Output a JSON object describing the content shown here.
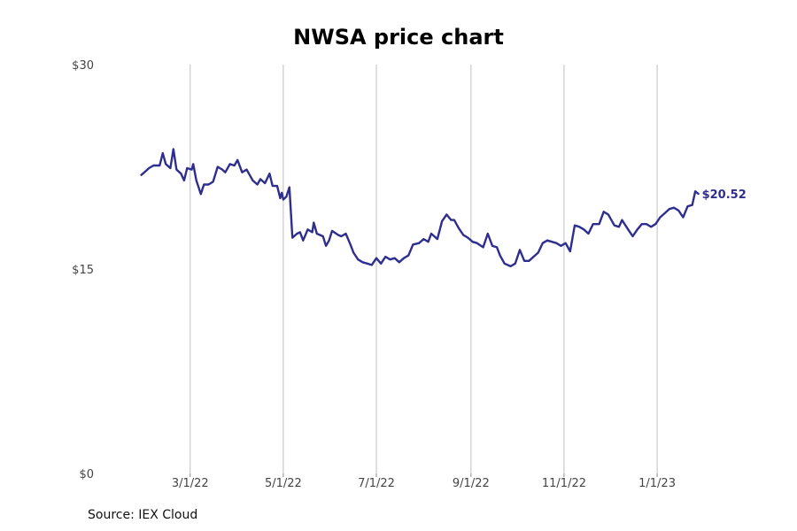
{
  "title": "NWSA price chart",
  "source": "Source: IEX Cloud",
  "colors": {
    "line": "#2e2e8f",
    "grid": "#c0c0c0"
  },
  "chart_data": {
    "type": "line",
    "title": "NWSA price chart",
    "xlabel": "",
    "ylabel": "",
    "ylim": [
      0,
      30
    ],
    "y_ticks": [
      {
        "value": 0,
        "label": "$0"
      },
      {
        "value": 15,
        "label": "$15"
      },
      {
        "value": 30,
        "label": "$30"
      }
    ],
    "x_range": [
      "2022-01-05",
      "2023-02-28"
    ],
    "x_ticks": [
      {
        "date": "2022-03-01",
        "label": "3/1/22"
      },
      {
        "date": "2022-05-01",
        "label": "5/1/22"
      },
      {
        "date": "2022-07-01",
        "label": "7/1/22"
      },
      {
        "date": "2022-09-01",
        "label": "9/1/22"
      },
      {
        "date": "2022-11-01",
        "label": "11/1/22"
      },
      {
        "date": "2023-01-01",
        "label": "1/1/23"
      }
    ],
    "grid": "vertical lines at x ticks",
    "end_label": "$20.52",
    "series": [
      {
        "values": [
          [
            "2022-01-28",
            21.9
          ],
          [
            "2022-01-31",
            22.2
          ],
          [
            "2022-02-02",
            22.4
          ],
          [
            "2022-02-05",
            22.6
          ],
          [
            "2022-02-09",
            22.6
          ],
          [
            "2022-02-11",
            23.5
          ],
          [
            "2022-02-13",
            22.7
          ],
          [
            "2022-02-16",
            22.4
          ],
          [
            "2022-02-18",
            23.8
          ],
          [
            "2022-02-20",
            22.3
          ],
          [
            "2022-02-23",
            22.0
          ],
          [
            "2022-02-25",
            21.5
          ],
          [
            "2022-02-27",
            22.4
          ],
          [
            "2022-03-02",
            22.3
          ],
          [
            "2022-03-03",
            22.7
          ],
          [
            "2022-03-05",
            21.5
          ],
          [
            "2022-03-08",
            20.5
          ],
          [
            "2022-03-10",
            21.2
          ],
          [
            "2022-03-13",
            21.2
          ],
          [
            "2022-03-16",
            21.4
          ],
          [
            "2022-03-19",
            22.5
          ],
          [
            "2022-03-22",
            22.3
          ],
          [
            "2022-03-24",
            22.1
          ],
          [
            "2022-03-27",
            22.7
          ],
          [
            "2022-03-30",
            22.6
          ],
          [
            "2022-04-01",
            23.0
          ],
          [
            "2022-04-04",
            22.1
          ],
          [
            "2022-04-07",
            22.3
          ],
          [
            "2022-04-11",
            21.5
          ],
          [
            "2022-04-14",
            21.2
          ],
          [
            "2022-04-16",
            21.6
          ],
          [
            "2022-04-19",
            21.3
          ],
          [
            "2022-04-22",
            22.0
          ],
          [
            "2022-04-24",
            21.1
          ],
          [
            "2022-04-27",
            21.1
          ],
          [
            "2022-04-29",
            20.2
          ],
          [
            "2022-04-30",
            20.6
          ],
          [
            "2022-05-01",
            20.1
          ],
          [
            "2022-05-03",
            20.3
          ],
          [
            "2022-05-05",
            21.0
          ],
          [
            "2022-05-07",
            17.3
          ],
          [
            "2022-05-10",
            17.6
          ],
          [
            "2022-05-12",
            17.7
          ],
          [
            "2022-05-14",
            17.1
          ],
          [
            "2022-05-17",
            17.9
          ],
          [
            "2022-05-20",
            17.7
          ],
          [
            "2022-05-21",
            18.4
          ],
          [
            "2022-05-23",
            17.6
          ],
          [
            "2022-05-27",
            17.4
          ],
          [
            "2022-05-29",
            16.7
          ],
          [
            "2022-05-31",
            17.1
          ],
          [
            "2022-06-02",
            17.8
          ],
          [
            "2022-06-06",
            17.5
          ],
          [
            "2022-06-08",
            17.4
          ],
          [
            "2022-06-11",
            17.6
          ],
          [
            "2022-06-14",
            16.8
          ],
          [
            "2022-06-16",
            16.2
          ],
          [
            "2022-06-19",
            15.7
          ],
          [
            "2022-06-22",
            15.5
          ],
          [
            "2022-06-25",
            15.4
          ],
          [
            "2022-06-28",
            15.3
          ],
          [
            "2022-07-01",
            15.8
          ],
          [
            "2022-07-04",
            15.4
          ],
          [
            "2022-07-07",
            15.9
          ],
          [
            "2022-07-10",
            15.7
          ],
          [
            "2022-07-13",
            15.8
          ],
          [
            "2022-07-16",
            15.5
          ],
          [
            "2022-07-19",
            15.8
          ],
          [
            "2022-07-22",
            16.0
          ],
          [
            "2022-07-25",
            16.8
          ],
          [
            "2022-07-29",
            16.9
          ],
          [
            "2022-08-01",
            17.2
          ],
          [
            "2022-08-04",
            17.0
          ],
          [
            "2022-08-06",
            17.6
          ],
          [
            "2022-08-10",
            17.2
          ],
          [
            "2022-08-13",
            18.5
          ],
          [
            "2022-08-16",
            19.0
          ],
          [
            "2022-08-19",
            18.6
          ],
          [
            "2022-08-21",
            18.6
          ],
          [
            "2022-08-24",
            18.0
          ],
          [
            "2022-08-27",
            17.5
          ],
          [
            "2022-08-30",
            17.3
          ],
          [
            "2022-09-02",
            17.0
          ],
          [
            "2022-09-05",
            16.9
          ],
          [
            "2022-09-09",
            16.6
          ],
          [
            "2022-09-12",
            17.6
          ],
          [
            "2022-09-15",
            16.7
          ],
          [
            "2022-09-18",
            16.6
          ],
          [
            "2022-09-20",
            16.0
          ],
          [
            "2022-09-23",
            15.4
          ],
          [
            "2022-09-27",
            15.2
          ],
          [
            "2022-09-30",
            15.4
          ],
          [
            "2022-10-03",
            16.4
          ],
          [
            "2022-10-06",
            15.6
          ],
          [
            "2022-10-09",
            15.6
          ],
          [
            "2022-10-12",
            15.9
          ],
          [
            "2022-10-15",
            16.2
          ],
          [
            "2022-10-18",
            16.9
          ],
          [
            "2022-10-21",
            17.1
          ],
          [
            "2022-10-24",
            17.0
          ],
          [
            "2022-10-27",
            16.9
          ],
          [
            "2022-10-30",
            16.7
          ],
          [
            "2022-11-02",
            16.9
          ],
          [
            "2022-11-05",
            16.3
          ],
          [
            "2022-11-08",
            18.2
          ],
          [
            "2022-11-11",
            18.1
          ],
          [
            "2022-11-14",
            17.9
          ],
          [
            "2022-11-17",
            17.6
          ],
          [
            "2022-11-20",
            18.3
          ],
          [
            "2022-11-24",
            18.3
          ],
          [
            "2022-11-27",
            19.2
          ],
          [
            "2022-11-30",
            19.0
          ],
          [
            "2022-12-04",
            18.2
          ],
          [
            "2022-12-07",
            18.1
          ],
          [
            "2022-12-09",
            18.6
          ],
          [
            "2022-12-13",
            17.9
          ],
          [
            "2022-12-16",
            17.4
          ],
          [
            "2022-12-19",
            17.9
          ],
          [
            "2022-12-22",
            18.3
          ],
          [
            "2022-12-25",
            18.3
          ],
          [
            "2022-12-28",
            18.1
          ],
          [
            "2022-12-31",
            18.3
          ],
          [
            "2023-01-03",
            18.8
          ],
          [
            "2023-01-06",
            19.1
          ],
          [
            "2023-01-09",
            19.4
          ],
          [
            "2023-01-12",
            19.5
          ],
          [
            "2023-01-15",
            19.3
          ],
          [
            "2023-01-18",
            18.8
          ],
          [
            "2023-01-21",
            19.6
          ],
          [
            "2023-01-24",
            19.7
          ],
          [
            "2023-01-26",
            20.7
          ],
          [
            "2023-01-28",
            20.52
          ]
        ]
      }
    ]
  }
}
